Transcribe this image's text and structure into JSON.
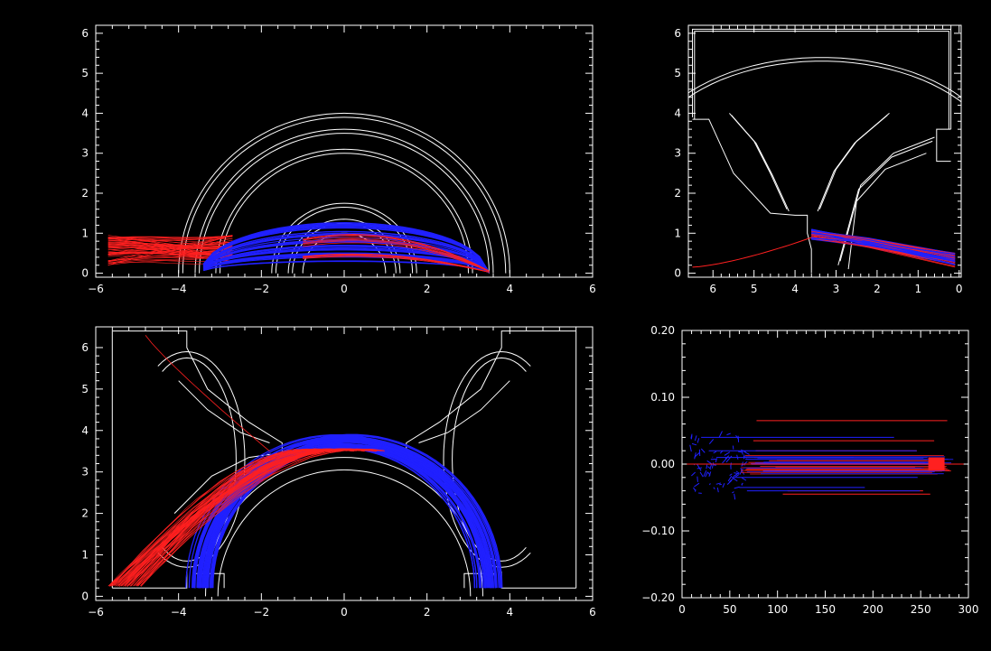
{
  "window": {
    "background": "#000000"
  },
  "colors": {
    "axes": "#ffffff",
    "red_series": "#ff2020",
    "blue_series": "#2020ff"
  },
  "chart_data": [
    {
      "id": "top-left",
      "type": "scatter",
      "title": "",
      "xlabel": "",
      "ylabel": "",
      "xlim": [
        -6,
        6
      ],
      "ylim": [
        -0.1,
        6.2
      ],
      "xticks": [
        -6,
        -4,
        -2,
        0,
        2,
        4,
        6
      ],
      "xtick_labels": [
        "−6",
        "−4",
        "−2",
        "0",
        "2",
        "4",
        "6"
      ],
      "yticks": [
        0,
        1,
        2,
        3,
        4,
        5,
        6
      ],
      "ytick_labels": [
        "0",
        "1",
        "2",
        "3",
        "4",
        "5",
        "6"
      ],
      "series": [
        {
          "color": "#ff2020",
          "description": "red particle trajectories"
        },
        {
          "color": "#2020ff",
          "description": "blue particle trajectories"
        }
      ]
    },
    {
      "id": "top-right",
      "type": "scatter",
      "title": "",
      "xlabel": "",
      "ylabel": "",
      "xlim": [
        6.6,
        -0.05
      ],
      "ylim": [
        -0.1,
        6.2
      ],
      "xticks": [
        6,
        5,
        4,
        3,
        2,
        1,
        0
      ],
      "xtick_labels": [
        "6",
        "5",
        "4",
        "3",
        "2",
        "1",
        "0"
      ],
      "yticks": [
        0,
        1,
        2,
        3,
        4,
        5,
        6
      ],
      "ytick_labels": [
        "0",
        "1",
        "2",
        "3",
        "4",
        "5",
        "6"
      ],
      "series": [
        {
          "color": "#ff2020"
        },
        {
          "color": "#2020ff"
        }
      ]
    },
    {
      "id": "bottom-left",
      "type": "scatter",
      "title": "",
      "xlabel": "",
      "ylabel": "",
      "xlim": [
        -6,
        6
      ],
      "ylim": [
        -0.1,
        6.5
      ],
      "xticks": [
        -6,
        -4,
        -2,
        0,
        2,
        4,
        6
      ],
      "xtick_labels": [
        "−6",
        "−4",
        "−2",
        "0",
        "2",
        "4",
        "6"
      ],
      "yticks": [
        0,
        1,
        2,
        3,
        4,
        5,
        6
      ],
      "ytick_labels": [
        "0",
        "1",
        "2",
        "3",
        "4",
        "5",
        "6"
      ],
      "series": [
        {
          "color": "#ff2020"
        },
        {
          "color": "#2020ff"
        }
      ]
    },
    {
      "id": "bottom-right",
      "type": "line",
      "title": "",
      "xlabel": "",
      "ylabel": "",
      "xlim": [
        0,
        300
      ],
      "ylim": [
        -0.2,
        0.2
      ],
      "xticks": [
        0,
        50,
        100,
        150,
        200,
        250,
        300
      ],
      "xtick_labels": [
        "0",
        "50",
        "100",
        "150",
        "200",
        "250",
        "300"
      ],
      "yticks": [
        -0.2,
        -0.1,
        0,
        0.1,
        0.2
      ],
      "ytick_labels": [
        "−0.20",
        "−0.10",
        "0.00",
        "0.10",
        "0.20"
      ],
      "series": [
        {
          "color": "#ff2020",
          "levels": [
            0.065,
            0.035,
            0.02,
            0.0,
            -0.005,
            -0.01,
            -0.04,
            -0.045
          ]
        },
        {
          "color": "#2020ff",
          "levels": [
            0.04,
            0.02,
            0.01,
            0.0,
            -0.02,
            -0.035,
            -0.04
          ]
        }
      ]
    }
  ]
}
